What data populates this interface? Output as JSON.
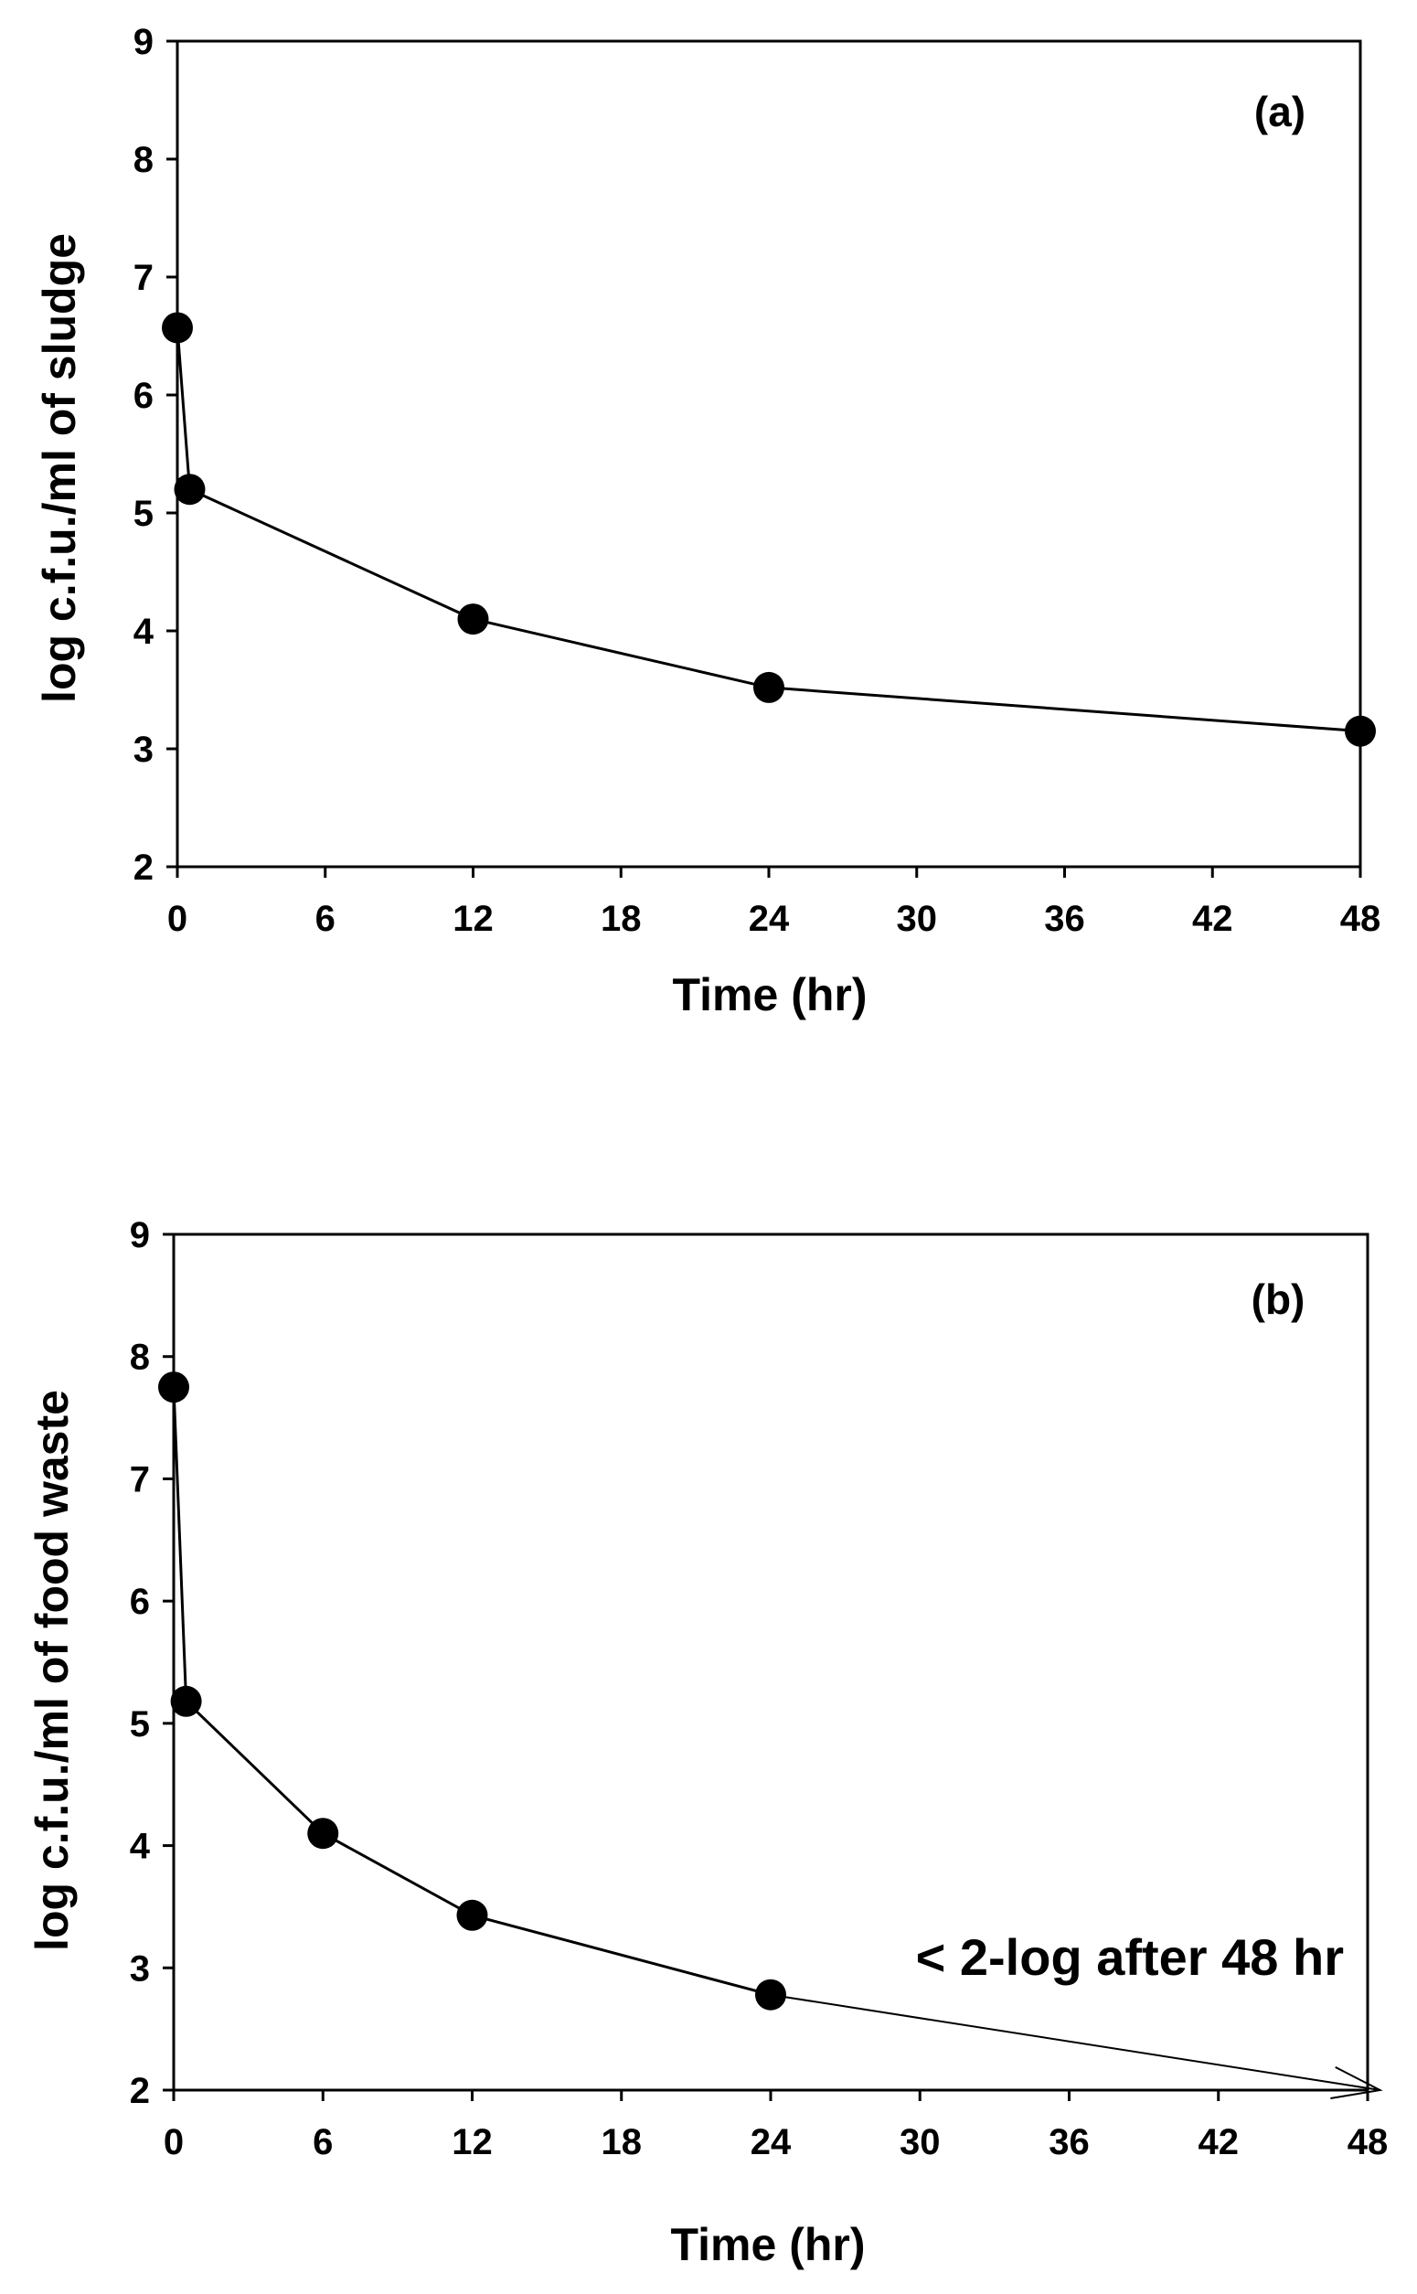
{
  "chart_data": [
    {
      "id": "a",
      "type": "line",
      "panel_label": "(a)",
      "xlabel": "Time (hr)",
      "ylabel": "log c.f.u./ml of sludge",
      "xlim": [
        0,
        48
      ],
      "ylim": [
        2,
        9
      ],
      "xticks": [
        0,
        6,
        12,
        18,
        24,
        30,
        36,
        42,
        48
      ],
      "yticks": [
        2,
        3,
        4,
        5,
        6,
        7,
        8,
        9
      ],
      "x_tick_labels": [
        "0",
        "6",
        "12",
        "18",
        "24",
        "30",
        "36",
        "42",
        "48"
      ],
      "y_tick_labels": [
        "2",
        "3",
        "4",
        "5",
        "6",
        "7",
        "8",
        "9"
      ],
      "grid": false,
      "series": [
        {
          "name": "sludge",
          "x": [
            0,
            0.5,
            12,
            24,
            48
          ],
          "y": [
            6.57,
            5.2,
            4.1,
            3.52,
            3.15
          ],
          "color": "#000000"
        }
      ]
    },
    {
      "id": "b",
      "type": "line",
      "panel_label": "(b)",
      "xlabel": "Time (hr)",
      "ylabel": "log c.f.u./ml of food waste",
      "xlim": [
        0,
        48
      ],
      "ylim": [
        2,
        9
      ],
      "xticks": [
        0,
        6,
        12,
        18,
        24,
        30,
        36,
        42,
        48
      ],
      "yticks": [
        2,
        3,
        4,
        5,
        6,
        7,
        8,
        9
      ],
      "x_tick_labels": [
        "0",
        "6",
        "12",
        "18",
        "24",
        "30",
        "36",
        "42",
        "48"
      ],
      "y_tick_labels": [
        "2",
        "3",
        "4",
        "5",
        "6",
        "7",
        "8",
        "9"
      ],
      "grid": false,
      "series": [
        {
          "name": "food waste",
          "x": [
            0,
            0.5,
            6,
            12,
            24
          ],
          "y": [
            7.75,
            5.18,
            4.1,
            3.43,
            2.78
          ],
          "color": "#000000"
        }
      ],
      "annotation": {
        "text": "< 2-log after 48 hr",
        "arrow_from": {
          "x": 24,
          "y": 2.78
        },
        "arrow_to": {
          "x": 48.5,
          "y": 2.0
        }
      }
    }
  ]
}
